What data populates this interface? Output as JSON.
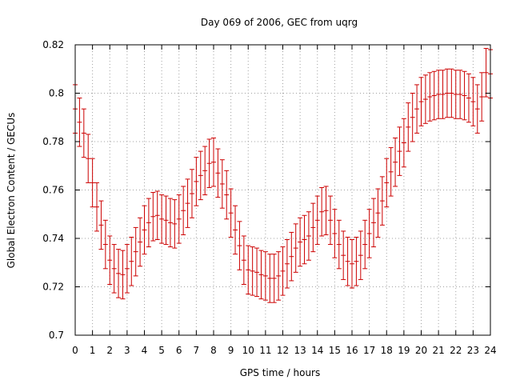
{
  "chart_data": {
    "type": "errorbar",
    "title": "Day 069 of 2006, GEC from uqrg",
    "xlabel": "GPS time / hours",
    "ylabel": "Global Electron Content / GECUs",
    "xlim": [
      0,
      24
    ],
    "ylim": [
      0.7,
      0.82
    ],
    "xticks": [
      0,
      1,
      2,
      3,
      4,
      5,
      6,
      7,
      8,
      9,
      10,
      11,
      12,
      13,
      14,
      15,
      16,
      17,
      18,
      19,
      20,
      21,
      22,
      23,
      24
    ],
    "xtick_labels": [
      "0",
      "1",
      "2",
      "3",
      "4",
      "5",
      "6",
      "7",
      "8",
      "9",
      "10",
      "11",
      "12",
      "13",
      "14",
      "15",
      "16",
      "17",
      "18",
      "19",
      "20",
      "21",
      "22",
      "23",
      "24"
    ],
    "yticks": [
      0.7,
      0.72,
      0.74,
      0.76,
      0.78,
      0.8,
      0.82
    ],
    "ytick_labels": [
      "0.7",
      "0.72",
      "0.74",
      "0.76",
      "0.78",
      "0.8",
      "0.82"
    ],
    "grid": true,
    "error": 0.01,
    "color": "#cc0000",
    "series": [
      {
        "name": "GEC",
        "x": [
          0,
          0.25,
          0.5,
          0.75,
          1,
          1.25,
          1.5,
          1.75,
          2,
          2.25,
          2.5,
          2.75,
          3,
          3.25,
          3.5,
          3.75,
          4,
          4.25,
          4.5,
          4.75,
          5,
          5.25,
          5.5,
          5.75,
          6,
          6.25,
          6.5,
          6.75,
          7,
          7.25,
          7.5,
          7.75,
          8,
          8.25,
          8.5,
          8.75,
          9,
          9.25,
          9.5,
          9.75,
          10,
          10.25,
          10.5,
          10.75,
          11,
          11.25,
          11.5,
          11.75,
          12,
          12.25,
          12.5,
          12.75,
          13,
          13.25,
          13.5,
          13.75,
          14,
          14.25,
          14.5,
          14.75,
          15,
          15.25,
          15.5,
          15.75,
          16,
          16.25,
          16.5,
          16.75,
          17,
          17.25,
          17.5,
          17.75,
          18,
          18.25,
          18.5,
          18.75,
          19,
          19.25,
          19.5,
          19.75,
          20,
          20.25,
          20.5,
          20.75,
          21,
          21.25,
          21.5,
          21.75,
          22,
          22.25,
          22.5,
          22.75,
          23,
          23.25,
          23.5,
          23.75,
          24
        ],
        "y": [
          0.7935,
          0.788,
          0.7835,
          0.773,
          0.763,
          0.753,
          0.7455,
          0.7375,
          0.731,
          0.7275,
          0.7255,
          0.725,
          0.7275,
          0.7305,
          0.7345,
          0.7385,
          0.7435,
          0.7465,
          0.749,
          0.7495,
          0.748,
          0.7475,
          0.7465,
          0.746,
          0.748,
          0.7515,
          0.7545,
          0.7585,
          0.7635,
          0.766,
          0.768,
          0.771,
          0.7715,
          0.767,
          0.7625,
          0.758,
          0.7505,
          0.7435,
          0.737,
          0.731,
          0.727,
          0.7265,
          0.726,
          0.725,
          0.7245,
          0.7235,
          0.7235,
          0.7245,
          0.7265,
          0.7295,
          0.7325,
          0.736,
          0.7385,
          0.7395,
          0.741,
          0.7445,
          0.7475,
          0.751,
          0.7515,
          0.7475,
          0.742,
          0.7375,
          0.733,
          0.7305,
          0.7295,
          0.7305,
          0.733,
          0.7375,
          0.742,
          0.7465,
          0.7505,
          0.7555,
          0.763,
          0.7675,
          0.7715,
          0.776,
          0.7795,
          0.786,
          0.79,
          0.7935,
          0.7965,
          0.7975,
          0.7985,
          0.799,
          0.7995,
          0.7995,
          0.8,
          0.8,
          0.7995,
          0.7995,
          0.799,
          0.798,
          0.7965,
          0.7935,
          0.7985,
          0.8085,
          0.808
        ]
      }
    ]
  }
}
